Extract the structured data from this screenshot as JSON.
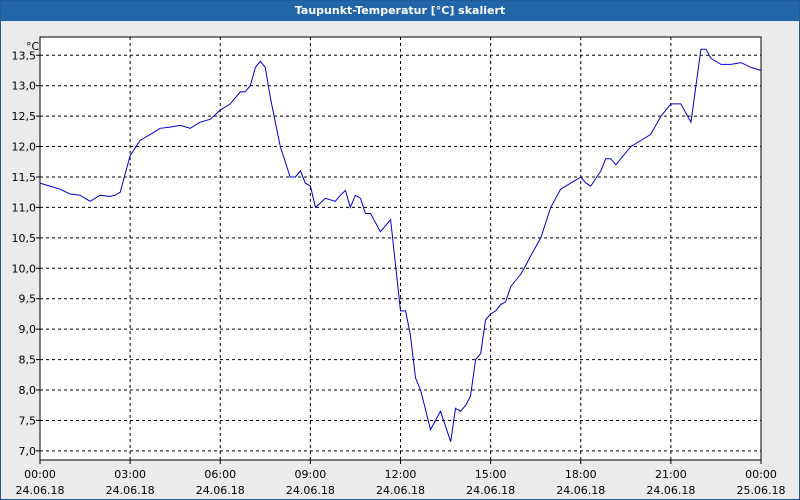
{
  "window": {
    "title": "Taupunkt-Temperatur [°C] skaliert"
  },
  "chart_data": {
    "type": "line",
    "title": "Taupunkt-Temperatur [°C] skaliert",
    "ylabel": "°C",
    "ylim": [
      6.85,
      13.8
    ],
    "xlim": [
      0,
      24
    ],
    "grid": true,
    "y_ticks": [
      "7,0",
      "7,5",
      "8,0",
      "8,5",
      "9,0",
      "9,5",
      "10,0",
      "10,5",
      "11,0",
      "11,5",
      "12,0",
      "12,5",
      "13,0",
      "13,5"
    ],
    "x_ticks": [
      {
        "time": "00:00",
        "date": "24.06.18"
      },
      {
        "time": "03:00",
        "date": "24.06.18"
      },
      {
        "time": "06:00",
        "date": "24.06.18"
      },
      {
        "time": "09:00",
        "date": "24.06.18"
      },
      {
        "time": "12:00",
        "date": "24.06.18"
      },
      {
        "time": "15:00",
        "date": "24.06.18"
      },
      {
        "time": "18:00",
        "date": "24.06.18"
      },
      {
        "time": "21:00",
        "date": "24.06.18"
      },
      {
        "time": "00:00",
        "date": "25.06.18"
      }
    ],
    "line_color": "#0000cc",
    "series": [
      {
        "x": [
          0,
          0.33,
          0.67,
          1.0,
          1.33,
          1.5,
          1.67,
          2.0,
          2.33,
          2.5,
          2.67,
          3.0,
          3.33,
          3.67,
          4.0,
          4.33,
          4.67,
          5.0,
          5.33,
          5.67,
          6.0,
          6.33,
          6.67,
          6.83,
          7.0,
          7.17,
          7.33,
          7.5,
          7.67,
          8.0,
          8.33,
          8.5,
          8.67,
          8.83,
          9.0,
          9.17,
          9.5,
          9.83,
          10.0,
          10.17,
          10.33,
          10.5,
          10.67,
          10.83,
          11.0,
          11.33,
          11.5,
          11.67,
          12.0,
          12.17,
          12.33,
          12.5,
          12.67,
          13.0,
          13.33,
          13.67,
          13.83,
          14.0,
          14.17,
          14.33,
          14.5,
          14.67,
          14.83,
          15.0,
          15.17,
          15.33,
          15.5,
          15.67,
          15.83,
          16.0,
          16.17,
          16.33,
          16.67,
          17.0,
          17.33,
          17.67,
          18.0,
          18.17,
          18.33,
          18.67,
          18.83,
          19.0,
          19.17,
          19.33,
          19.67,
          20.0,
          20.33,
          20.67,
          21.0,
          21.33,
          21.67,
          22.0,
          22.17,
          22.33,
          22.67,
          22.83,
          23.0,
          23.33,
          23.67,
          24.0
        ],
        "y": [
          11.4,
          11.35,
          11.3,
          11.22,
          11.2,
          11.15,
          11.1,
          11.2,
          11.18,
          11.2,
          11.25,
          11.85,
          12.1,
          12.2,
          12.3,
          12.32,
          12.35,
          12.3,
          12.4,
          12.45,
          12.6,
          12.7,
          12.9,
          12.9,
          13.0,
          13.3,
          13.4,
          13.3,
          12.8,
          12.0,
          11.5,
          11.5,
          11.6,
          11.4,
          11.35,
          11.0,
          11.15,
          11.1,
          11.2,
          11.28,
          11.0,
          11.2,
          11.15,
          10.9,
          10.9,
          10.6,
          10.7,
          10.8,
          9.3,
          9.3,
          8.9,
          8.2,
          8.0,
          7.35,
          7.65,
          7.15,
          7.7,
          7.65,
          7.75,
          7.9,
          8.5,
          8.6,
          9.15,
          9.25,
          9.3,
          9.4,
          9.45,
          9.7,
          9.8,
          9.9,
          10.05,
          10.2,
          10.5,
          11.0,
          11.3,
          11.4,
          11.5,
          11.4,
          11.35,
          11.6,
          11.8,
          11.8,
          11.7,
          11.8,
          12.0,
          12.1,
          12.2,
          12.5,
          12.7,
          12.7,
          12.4,
          13.6,
          13.6,
          13.45,
          13.35,
          13.35,
          13.35,
          13.38,
          13.3,
          13.25
        ]
      }
    ]
  }
}
